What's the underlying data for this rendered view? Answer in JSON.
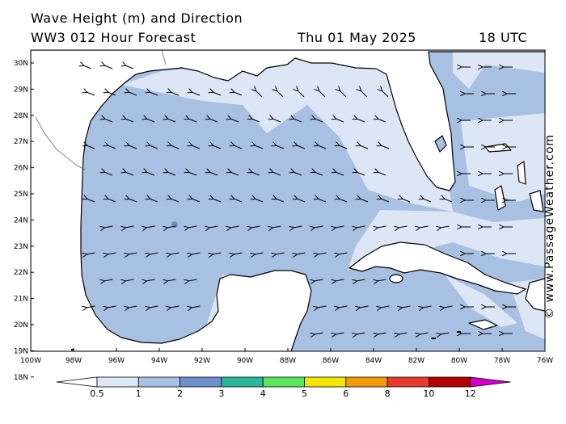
{
  "header": {
    "line1": "Wave Height (m) and Direction",
    "model": "WW3 012 Hour Forecast",
    "date": "Thu 01 May 2025",
    "time": "18 UTC"
  },
  "credit": "© www.PassageWeather.com",
  "map": {
    "lat_labels": [
      "30N",
      "29N",
      "28N",
      "27N",
      "26N",
      "25N",
      "24N",
      "23N",
      "22N",
      "21N",
      "20N",
      "19N",
      "18N"
    ],
    "lon_labels": [
      "100W",
      "98W",
      "96W",
      "94W",
      "92W",
      "90W",
      "88W",
      "86W",
      "84W",
      "82W",
      "80W",
      "78W",
      "76W"
    ],
    "lat_range": [
      18,
      30.5
    ],
    "lon_range": [
      -100,
      -76
    ],
    "wave_direction": "arrows point toward the west-northwest across the gulf, westward in the Atlantic and Caribbean",
    "colors": {
      "land": "#ffffff",
      "coast": "#000000",
      "sea_low": "#dce6f5",
      "sea_mid": "#a8c0e2"
    }
  },
  "legend": {
    "labels": [
      "0.5",
      "1",
      "2",
      "3",
      "4",
      "5",
      "6",
      "8",
      "10",
      "12"
    ],
    "colors": [
      "#ffffff",
      "#dce6f5",
      "#a8c0e2",
      "#6d90cc",
      "#2bb89a",
      "#5ae65a",
      "#f2e600",
      "#f29a0a",
      "#e83a2e",
      "#b30000",
      "#d200c8"
    ]
  }
}
